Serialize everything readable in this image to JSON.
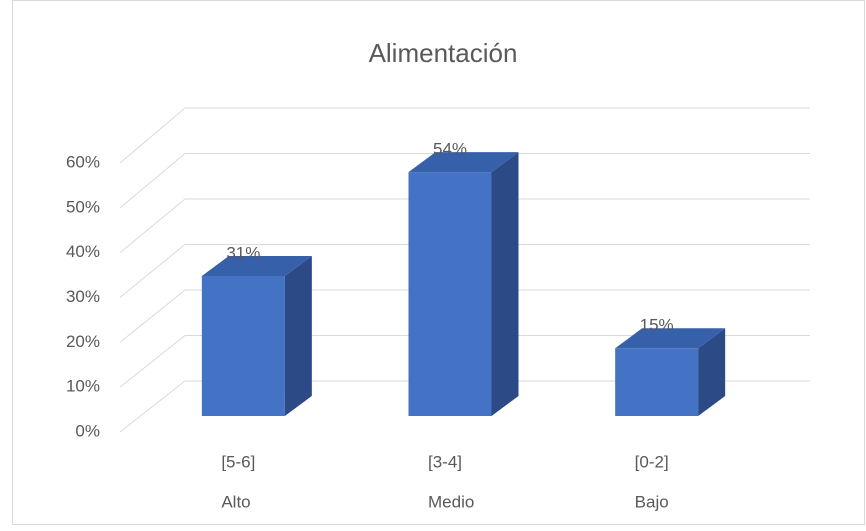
{
  "chart_data": {
    "type": "bar3d",
    "title": "Alimentación",
    "categories": [
      "[5-6]",
      "[3-4]",
      "[0-2]"
    ],
    "categories_level2": [
      "Alto",
      "Medio",
      "Bajo"
    ],
    "values": [
      31,
      54,
      15
    ],
    "value_labels": [
      "31%",
      "54%",
      "15%"
    ],
    "color": "#4472c4",
    "ylim": [
      0,
      60
    ],
    "yticks": [
      {
        "value": 0,
        "label": "0%"
      },
      {
        "value": 10,
        "label": "10%"
      },
      {
        "value": 20,
        "label": "20%"
      },
      {
        "value": 30,
        "label": "30%"
      },
      {
        "value": 40,
        "label": "40%"
      },
      {
        "value": 50,
        "label": "50%"
      },
      {
        "value": 60,
        "label": "60%"
      }
    ],
    "grid": true
  }
}
